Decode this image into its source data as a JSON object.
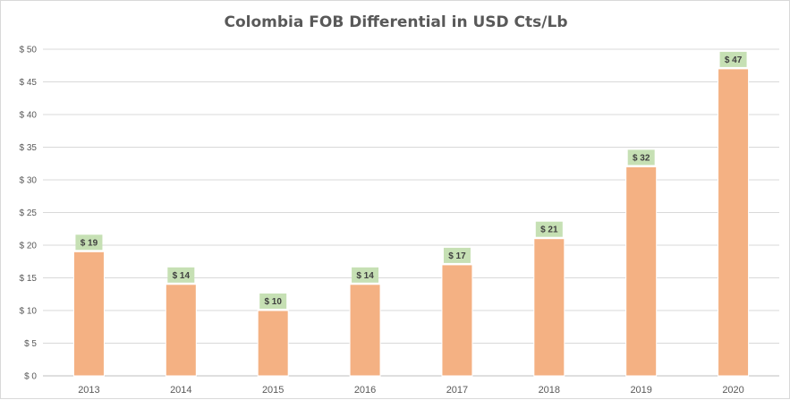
{
  "chart_data": {
    "type": "bar",
    "title": "Colombia FOB Differential in USD Cts/Lb",
    "categories": [
      "2013",
      "2014",
      "2015",
      "2016",
      "2017",
      "2018",
      "2019",
      "2020"
    ],
    "values": [
      19,
      14,
      10,
      14,
      17,
      21,
      32,
      47
    ],
    "data_labels": [
      "$ 19",
      "$ 14",
      "$ 10",
      "$ 14",
      "$ 17",
      "$ 21",
      "$ 32",
      "$ 47"
    ],
    "y_ticks": [
      "$ 0",
      "$ 5",
      "$ 10",
      "$ 15",
      "$ 20",
      "$ 25",
      "$ 30",
      "$ 35",
      "$ 40",
      "$ 45",
      "$ 50"
    ],
    "y_tick_values": [
      0,
      5,
      10,
      15,
      20,
      25,
      30,
      35,
      40,
      45,
      50
    ],
    "ylim": [
      0,
      50
    ],
    "xlabel": "",
    "ylabel": "",
    "grid": true,
    "legend": "none",
    "colors": {
      "bar": "#f4b183",
      "data_label_bg": "#c6e0b4"
    }
  }
}
